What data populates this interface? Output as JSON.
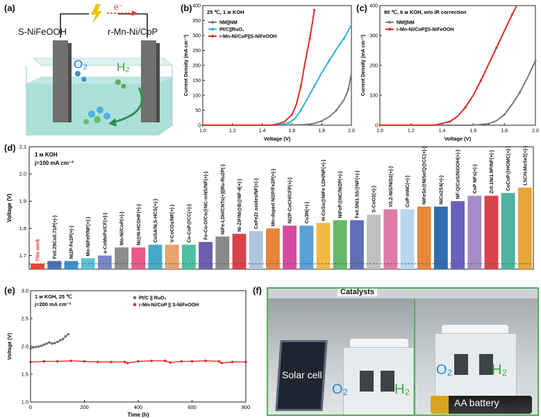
{
  "panels": {
    "a": "(a)",
    "b": "(b)",
    "c": "(c)",
    "d": "(d)",
    "e": "(e)",
    "f": "(f)"
  },
  "panel_a": {
    "anode_label": "S-NiFeOOH",
    "cathode_label": "r-Mn-Ni/CoP",
    "electron_label": "e⁻",
    "o2_label": "O₂",
    "h2_label": "H₂"
  },
  "panel_f": {
    "title": "Catalysts",
    "solar_label": "Solar cell",
    "battery_label": "AA battery",
    "o2_label": "O₂",
    "h2_label": "H₂"
  },
  "chart_data": [
    {
      "id": "b",
      "type": "line",
      "condition": "25 ℃, 1 м KOH",
      "xlabel": "Voltage (V)",
      "ylabel": "Current Density (mA cm⁻²)",
      "xlim": [
        1.0,
        2.0
      ],
      "ylim": [
        0,
        400
      ],
      "xticks": [
        "1.0",
        "1.2",
        "1.4",
        "1.6",
        "1.8",
        "2.0"
      ],
      "yticks": [
        "0",
        "50",
        "100",
        "150",
        "200",
        "250",
        "300",
        "350",
        "400"
      ],
      "legend_position": "top-left",
      "series": [
        {
          "name": "NM||NM",
          "color": "#7a7a7a",
          "x": [
            1.0,
            1.5,
            1.7,
            1.75,
            1.8,
            1.85,
            1.9,
            1.95,
            1.98,
            2.0
          ],
          "y": [
            0,
            0,
            2,
            6,
            14,
            28,
            50,
            85,
            120,
            175
          ]
        },
        {
          "name": "Pt/C||RuO₂",
          "color": "#2bb3d9",
          "x": [
            1.0,
            1.5,
            1.58,
            1.62,
            1.66,
            1.7,
            1.75,
            1.8,
            1.85,
            1.9,
            1.95,
            2.0
          ],
          "y": [
            0,
            0,
            8,
            22,
            50,
            85,
            130,
            175,
            215,
            255,
            290,
            335
          ]
        },
        {
          "name": "r-Mn-Ni/CoP||S-NiFeOOH",
          "color": "#e32b24",
          "x": [
            1.0,
            1.45,
            1.5,
            1.55,
            1.6,
            1.63,
            1.66,
            1.69,
            1.72,
            1.74,
            1.75
          ],
          "y": [
            0,
            0,
            3,
            12,
            35,
            70,
            130,
            215,
            290,
            350,
            385
          ]
        }
      ]
    },
    {
      "id": "c",
      "type": "line",
      "condition": "80 ℃, 6 м KOH, w/o iR correction",
      "xlabel": "Voltage (V)",
      "ylabel": "Current Density (mA cm⁻²)",
      "xlim": [
        1.0,
        2.0
      ],
      "ylim": [
        0,
        400
      ],
      "xticks": [
        "1.0",
        "1.2",
        "1.4",
        "1.6",
        "1.8",
        "2.0"
      ],
      "yticks": [
        "0",
        "100",
        "200",
        "300",
        "400"
      ],
      "legend_position": "top-left",
      "series": [
        {
          "name": "NM||NM",
          "color": "#7a7a7a",
          "x": [
            1.0,
            1.6,
            1.7,
            1.75,
            1.8,
            1.85,
            1.9,
            1.95,
            2.0
          ],
          "y": [
            0,
            0,
            5,
            15,
            35,
            70,
            110,
            160,
            215
          ]
        },
        {
          "name": "r-Mn-Ni/CoP||S-NiFeOOH",
          "color": "#e32b24",
          "x": [
            1.0,
            1.35,
            1.45,
            1.5,
            1.55,
            1.6,
            1.65,
            1.7,
            1.75,
            1.8,
            1.85,
            1.88
          ],
          "y": [
            0,
            0,
            12,
            30,
            60,
            100,
            150,
            205,
            260,
            315,
            370,
            400
          ]
        }
      ]
    },
    {
      "id": "d",
      "type": "bar",
      "condition": "1 м KOH",
      "subcondition": "j=100 mA cm⁻²",
      "ylabel": "Voltage (V)",
      "ylim": [
        1.65,
        2.1
      ],
      "yticks": [
        "1.7",
        "1.8",
        "1.9",
        "2.0",
        "2.1"
      ],
      "reference_line": 1.67,
      "categories": [
        "This work",
        "Fe0.29Co0.71P(+|-)",
        "Ni2P-Fe2P(+|-)",
        "Mo-NiFeP/NF(+|-)",
        "a-CoMoPx/CF(+|-)",
        "Mo-Ni/CoP(+|-)",
        "Ni@N-HCGHF(+|-)",
        "CoSA/N,S-HCS(+|-)",
        "V-CoCOx/NF(+|-)",
        "Ce-CoP@CC(+|-)",
        "Fe-Co-O/Co@NC-mNS/NF(+|-)",
        "NiFe-LDH/CNTs(+)||Ru-Ru2P(-)",
        "Ni-ZIF/Ni@B@NF-4(+|-)",
        "CoFeZr oxides/NF(+|-)",
        "Mn-doped Ni2P/Fe2P(+|-)",
        "Ni2P-CoCH/CFP(+|-)",
        "Cu3N(+|-)",
        "H-CoSx@NiFe LDH/NF(+|-)",
        "NiFeP@NC/Ni2P(+|-)",
        "Fe0.5Ni1.5S@NF(+|-)",
        "S-CoO2(+|-)",
        "V0.2-NiS/NiS2(+|-)",
        "CoP-InNC(+|-)",
        "NiFeSe@NiSe/Q@CC(+|-)",
        "NiCo2S4(+|-)",
        "NF-Q/CoS/NiOOH(+|-)",
        "CoP NFs(+|-)",
        "Zr0.1Ni1.9P/NF(+|-)",
        "CoCoP@HOMC(+|-)",
        "LSCH-MoSe2(+|-)"
      ],
      "values": [
        1.67,
        1.68,
        1.68,
        1.69,
        1.7,
        1.73,
        1.73,
        1.74,
        1.74,
        1.74,
        1.75,
        1.77,
        1.78,
        1.79,
        1.8,
        1.81,
        1.81,
        1.82,
        1.83,
        1.83,
        1.85,
        1.87,
        1.87,
        1.88,
        1.88,
        1.9,
        1.92,
        1.92,
        1.93,
        1.95
      ],
      "colors": [
        "#e8452e",
        "#4a6fb5",
        "#3f8fd0",
        "#5cc0d8",
        "#7a86c8",
        "#8d8d8d",
        "#e85a8a",
        "#46a9c9",
        "#e8a46a",
        "#4cc0a4",
        "#6a5fb0",
        "#8a8a8a",
        "#d9434a",
        "#b0c4de",
        "#e8843c",
        "#d44aa0",
        "#5aa0d8",
        "#f2b942",
        "#67b86a",
        "#5f6fb8",
        "#c0c0c0",
        "#e07aa8",
        "#b8d7ec",
        "#e8873a",
        "#2f6fb0",
        "#6a5fbe",
        "#a78bc7",
        "#d9434a",
        "#4fb3a0",
        "#e8a53a"
      ]
    },
    {
      "id": "e",
      "type": "scatter",
      "condition": "1 м KOH, 25 ℃",
      "subcondition": "j=200 mA cm⁻²",
      "xlabel": "Time (h)",
      "ylabel": "Voltage (V)",
      "xlim": [
        0,
        800
      ],
      "ylim": [
        1.0,
        3.0
      ],
      "xticks": [
        "0",
        "200",
        "400",
        "600",
        "800"
      ],
      "yticks": [
        "1.0",
        "1.5",
        "2.0",
        "2.5",
        "3.0"
      ],
      "legend_position": "top-right",
      "series": [
        {
          "name": "Pt/C || RuO₂",
          "color": "#6f6f6f",
          "x": [
            0,
            10,
            20,
            30,
            40,
            50,
            60,
            70,
            80,
            90,
            100,
            110,
            120,
            130,
            140
          ],
          "y": [
            1.96,
            1.98,
            1.99,
            2.0,
            2.01,
            2.03,
            2.05,
            2.07,
            2.05,
            2.06,
            2.08,
            2.11,
            2.13,
            2.18,
            2.22
          ]
        },
        {
          "name": "r-Mn-Ni/CoP || S-NiFeOOH",
          "color": "#e32b24",
          "x": [
            0,
            50,
            100,
            150,
            200,
            250,
            300,
            350,
            360,
            400,
            450,
            500,
            520,
            560,
            600,
            650,
            700,
            710,
            750,
            800
          ],
          "y": [
            1.72,
            1.73,
            1.73,
            1.74,
            1.73,
            1.72,
            1.72,
            1.72,
            1.7,
            1.73,
            1.74,
            1.74,
            1.71,
            1.73,
            1.73,
            1.74,
            1.73,
            1.7,
            1.72,
            1.72
          ]
        }
      ]
    }
  ]
}
